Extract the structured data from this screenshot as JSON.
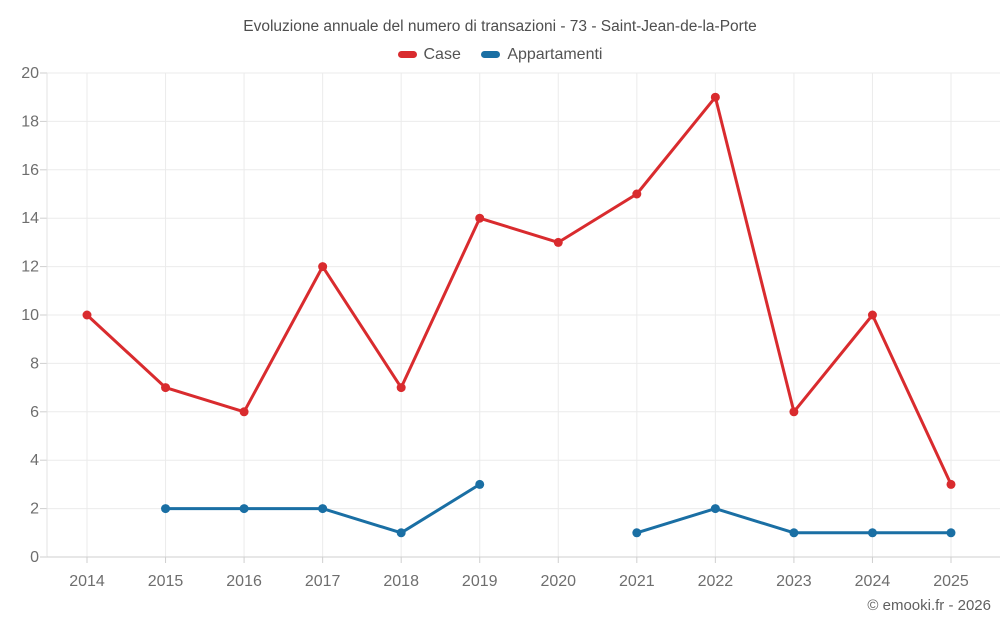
{
  "footer": {
    "credit": "© emooki.fr - 2026"
  },
  "chart_data": {
    "type": "line",
    "title": "Evoluzione annuale del numero di transazioni - 73 - Saint-Jean-de-la-Porte",
    "xlabel": "",
    "ylabel": "",
    "categories": [
      "2014",
      "2015",
      "2016",
      "2017",
      "2018",
      "2019",
      "2020",
      "2021",
      "2022",
      "2023",
      "2024",
      "2025"
    ],
    "series": [
      {
        "name": "Case",
        "color": "#d92b2e",
        "values": [
          10,
          7,
          6,
          12,
          7,
          14,
          13,
          15,
          19,
          6,
          10,
          3
        ]
      },
      {
        "name": "Appartamenti",
        "color": "#1a6fa4",
        "values": [
          null,
          2,
          2,
          2,
          1,
          3,
          null,
          1,
          2,
          1,
          1,
          1
        ]
      }
    ],
    "ylim": [
      0,
      20
    ],
    "ytick_step": 2,
    "grid": true,
    "legend_position": "top",
    "marker": "circle",
    "grid_color": "#ebebeb",
    "axis_line_color": "#cfcfcf",
    "axis_label_color": "#6e6e6e"
  }
}
